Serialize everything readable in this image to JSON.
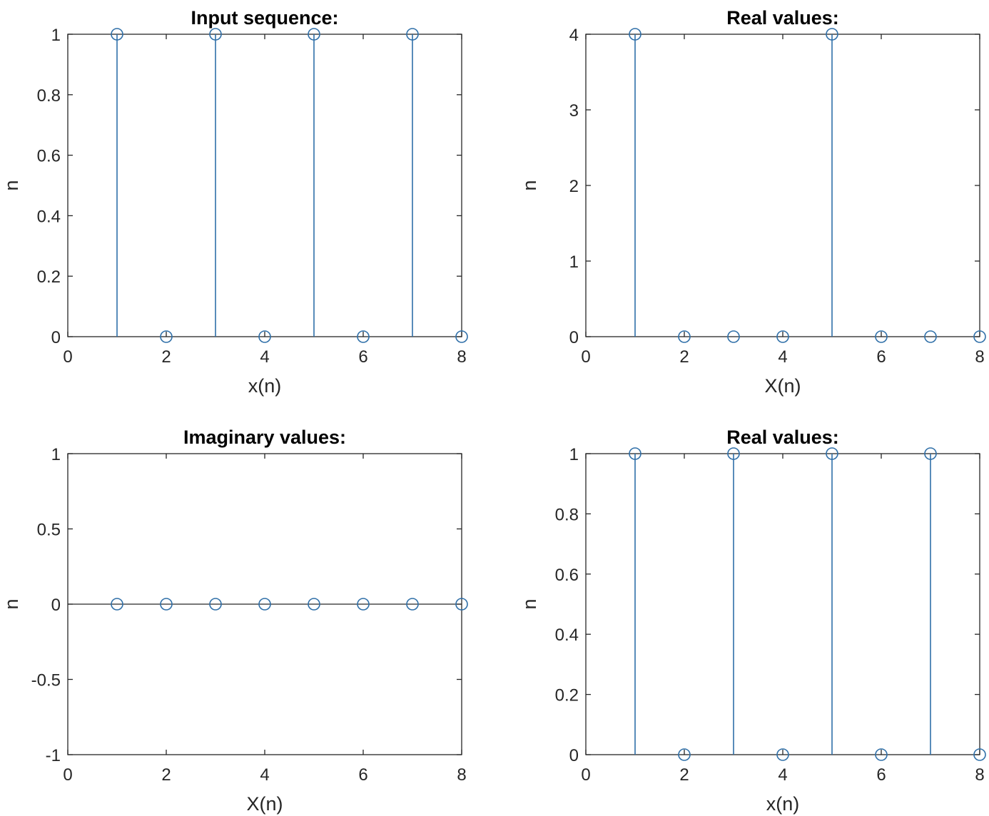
{
  "figure": {
    "stem_color": "#2f6fa8",
    "axis_color": "#262626",
    "background": "#ffffff"
  },
  "chart_data": [
    {
      "type": "stem",
      "title": "Input sequence:",
      "xlabel": "x(n)",
      "ylabel": "n",
      "xlim": [
        0,
        8
      ],
      "ylim": [
        0,
        1
      ],
      "xticks": [
        0,
        2,
        4,
        6,
        8
      ],
      "yticks": [
        0,
        0.2,
        0.4,
        0.6,
        0.8,
        1
      ],
      "ytick_labels": [
        "0",
        "0.2",
        "0.4",
        "0.6",
        "0.8",
        "1"
      ],
      "x": [
        1,
        2,
        3,
        4,
        5,
        6,
        7,
        8
      ],
      "values": [
        1,
        0,
        1,
        0,
        1,
        0,
        1,
        0
      ],
      "grid": false
    },
    {
      "type": "stem",
      "title": "Real values:",
      "xlabel": "X(n)",
      "ylabel": "n",
      "xlim": [
        0,
        8
      ],
      "ylim": [
        0,
        4
      ],
      "xticks": [
        0,
        2,
        4,
        6,
        8
      ],
      "yticks": [
        0,
        1,
        2,
        3,
        4
      ],
      "ytick_labels": [
        "0",
        "1",
        "2",
        "3",
        "4"
      ],
      "x": [
        1,
        2,
        3,
        4,
        5,
        6,
        7,
        8
      ],
      "values": [
        4,
        0,
        0,
        0,
        4,
        0,
        0,
        0
      ],
      "grid": false
    },
    {
      "type": "stem",
      "title": "Imaginary values:",
      "xlabel": "X(n)",
      "ylabel": "n",
      "xlim": [
        0,
        8
      ],
      "ylim": [
        -1,
        1
      ],
      "xticks": [
        0,
        2,
        4,
        6,
        8
      ],
      "yticks": [
        -1,
        -0.5,
        0,
        0.5,
        1
      ],
      "ytick_labels": [
        "-1",
        "-0.5",
        "0",
        "0.5",
        "1"
      ],
      "x": [
        1,
        2,
        3,
        4,
        5,
        6,
        7,
        8
      ],
      "values": [
        0,
        0,
        0,
        0,
        0,
        0,
        0,
        0
      ],
      "grid": false
    },
    {
      "type": "stem",
      "title": "Real values:",
      "xlabel": "x(n)",
      "ylabel": "n",
      "xlim": [
        0,
        8
      ],
      "ylim": [
        0,
        1
      ],
      "xticks": [
        0,
        2,
        4,
        6,
        8
      ],
      "yticks": [
        0,
        0.2,
        0.4,
        0.6,
        0.8,
        1
      ],
      "ytick_labels": [
        "0",
        "0.2",
        "0.4",
        "0.6",
        "0.8",
        "1"
      ],
      "x": [
        1,
        2,
        3,
        4,
        5,
        6,
        7,
        8
      ],
      "values": [
        1,
        0,
        1,
        0,
        1,
        0,
        1,
        0
      ],
      "grid": false
    }
  ]
}
